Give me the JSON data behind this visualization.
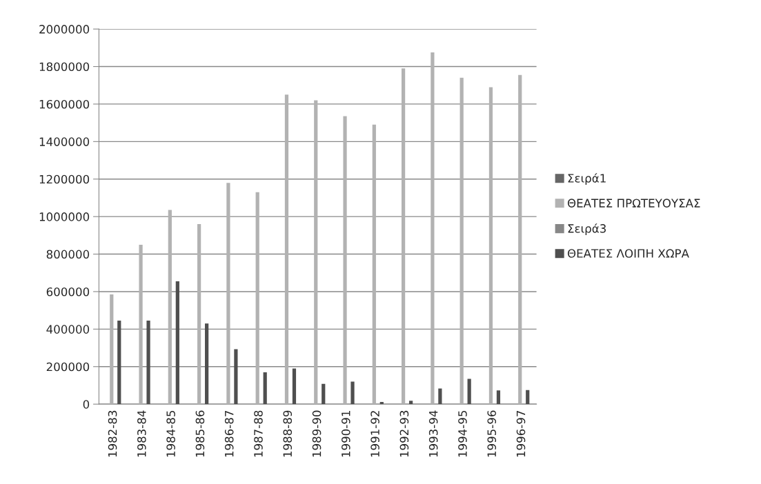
{
  "chart_data": {
    "type": "bar",
    "categories": [
      "1982-83",
      "1983-84",
      "1984-85",
      "1985-86",
      "1986-87",
      "1987-88",
      "1988-89",
      "1989-90",
      "1990-91",
      "1991-92",
      "1992-93",
      "1993-94",
      "1994-95",
      "1995-96",
      "1996-97"
    ],
    "series": [
      {
        "name": "Σειρά1",
        "color": "#666666",
        "values": [
          null,
          null,
          null,
          null,
          null,
          null,
          null,
          null,
          null,
          null,
          null,
          null,
          null,
          null,
          null
        ]
      },
      {
        "name": "ΘΕΑΤΕΣ ΠΡΩΤΕΥΟΥΣΑΣ",
        "color": "#b2b2b2",
        "values": [
          585000,
          850000,
          1035000,
          960000,
          1180000,
          1130000,
          1650000,
          1620000,
          1535000,
          1490000,
          1790000,
          1875000,
          1740000,
          1690000,
          1755000
        ]
      },
      {
        "name": "Σειρά3",
        "color": "#878787",
        "values": [
          null,
          null,
          null,
          null,
          null,
          null,
          null,
          null,
          null,
          null,
          null,
          null,
          null,
          null,
          null
        ]
      },
      {
        "name": "ΘΕΑΤΕΣ ΛΟΙΠΗ ΧΩΡΑ",
        "color": "#4f4f4f",
        "values": [
          445000,
          445000,
          655000,
          430000,
          293000,
          170000,
          190000,
          108000,
          120000,
          12000,
          18000,
          83000,
          135000,
          73000,
          75000
        ]
      }
    ],
    "ylim": [
      0,
      2000000
    ],
    "yticks": [
      0,
      200000,
      400000,
      600000,
      800000,
      1000000,
      1200000,
      1400000,
      1600000,
      1800000,
      2000000
    ],
    "grid": "y",
    "legend": "right"
  }
}
